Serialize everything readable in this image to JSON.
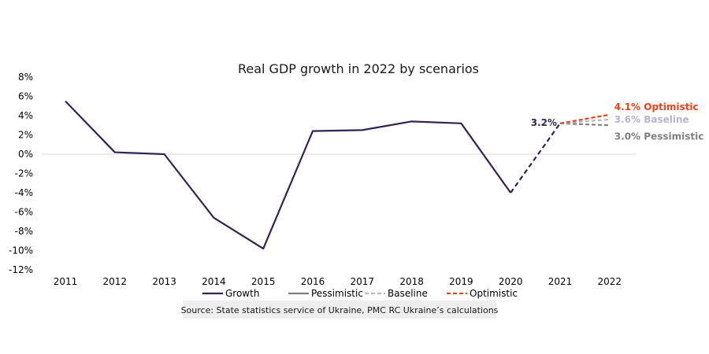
{
  "chart_data": {
    "type": "line",
    "title": "Real GDP growth in 2022 by scenarios",
    "x": [
      "2011",
      "2012",
      "2013",
      "2014",
      "2015",
      "2016",
      "2017",
      "2018",
      "2019",
      "2020",
      "2021",
      "2022"
    ],
    "y_ticks": [
      "8%",
      "6%",
      "4%",
      "2%",
      "0%",
      "-2%",
      "-4%",
      "-6%",
      "-8%",
      "-10%",
      "-12%"
    ],
    "ylim": [
      -12,
      8
    ],
    "growth": {
      "name": "Growth",
      "solid": [
        {
          "x": "2011",
          "y": 5.5
        },
        {
          "x": "2012",
          "y": 0.2
        },
        {
          "x": "2013",
          "y": 0.0
        },
        {
          "x": "2014",
          "y": -6.6
        },
        {
          "x": "2015",
          "y": -9.8
        },
        {
          "x": "2016",
          "y": 2.4
        },
        {
          "x": "2017",
          "y": 2.5
        },
        {
          "x": "2018",
          "y": 3.4
        },
        {
          "x": "2019",
          "y": 3.2
        },
        {
          "x": "2020",
          "y": -4.0
        }
      ],
      "dashed": [
        {
          "x": "2020",
          "y": -4.0
        },
        {
          "x": "2021",
          "y": 3.2
        }
      ]
    },
    "scenarios": [
      {
        "name": "Pessimistic",
        "color": "#808080",
        "from": {
          "x": "2021",
          "y": 3.2
        },
        "to": {
          "x": "2022",
          "y": 3.0
        },
        "label": "3.0% Pessimistic"
      },
      {
        "name": "Baseline",
        "color": "#b9b3cf",
        "from": {
          "x": "2021",
          "y": 3.2
        },
        "to": {
          "x": "2022",
          "y": 3.6
        },
        "label": "3.6% Baseline"
      },
      {
        "name": "Optimistic",
        "color": "#e8441c",
        "from": {
          "x": "2021",
          "y": 3.2
        },
        "to": {
          "x": "2022",
          "y": 4.1
        },
        "label": "4.1% Optimistic"
      }
    ],
    "annotation_2021": "3.2%",
    "legend": [
      {
        "name": "Growth",
        "color": "#33234f",
        "style": "solid"
      },
      {
        "name": "Pessimistic",
        "color": "#808080",
        "style": "solid"
      },
      {
        "name": "Baseline",
        "color": "#b9b3cf",
        "style": "dashed"
      },
      {
        "name": "Optimistic",
        "color": "#e8441c",
        "style": "dashed"
      }
    ],
    "source": "Source: State statistics service of Ukraine, PMC RC Ukraine’s calculations",
    "colors": {
      "growth": "#33234f",
      "gridline": "#d9d9d9"
    }
  }
}
